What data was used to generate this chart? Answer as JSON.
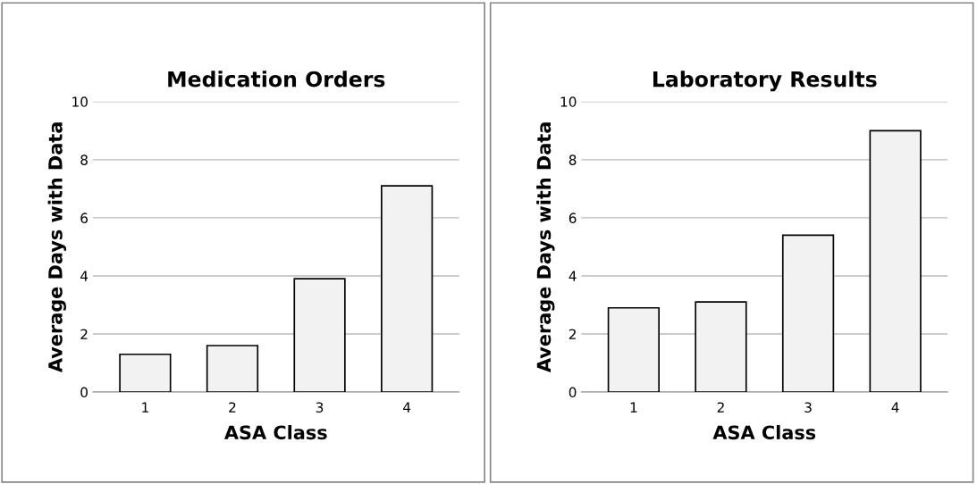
{
  "chart_data": [
    {
      "type": "bar",
      "title": "Medication Orders",
      "xlabel": "ASA Class",
      "ylabel": "Average Days with Data",
      "categories": [
        "1",
        "2",
        "3",
        "4"
      ],
      "values": [
        1.3,
        1.6,
        3.9,
        7.1
      ],
      "color": "#f2f2f2",
      "ylim": [
        0,
        10
      ],
      "yticks": [
        0,
        2,
        4,
        6,
        8,
        10
      ],
      "grid": "y"
    },
    {
      "type": "bar",
      "title": "Laboratory Results",
      "xlabel": "ASA Class",
      "ylabel": "Average Days with Data",
      "categories": [
        "1",
        "2",
        "3",
        "4"
      ],
      "values": [
        2.9,
        3.1,
        5.4,
        9.0
      ],
      "color": "#f2f2f2",
      "ylim": [
        0,
        10
      ],
      "yticks": [
        0,
        2,
        4,
        6,
        8,
        10
      ],
      "grid": "y"
    }
  ]
}
